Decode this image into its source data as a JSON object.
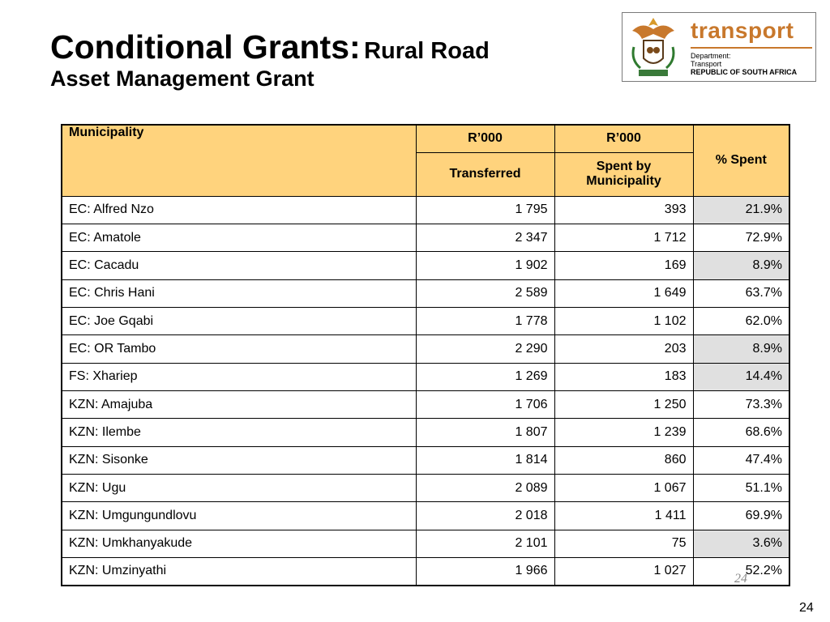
{
  "title": {
    "main": "Conditional Grants:",
    "sub_line1": "Rural Road",
    "sub_line2": "Asset Management Grant"
  },
  "logo": {
    "brand": "transport",
    "dept_line1": "Department:",
    "dept_line2": "Transport",
    "dept_line3": "REPUBLIC OF SOUTH AFRICA"
  },
  "table": {
    "headers": {
      "municipality": "Municipality",
      "unit_transferred": "R’000",
      "unit_spent": "R’000",
      "transferred": "Transferred",
      "spent_by": "Spent by Municipality",
      "pct_spent": "% Spent"
    },
    "rows": [
      {
        "municipality": "EC: Alfred Nzo",
        "transferred": "1 795",
        "spent": "393",
        "pct": "21.9%",
        "low": true
      },
      {
        "municipality": "EC: Amatole",
        "transferred": "2 347",
        "spent": "1 712",
        "pct": "72.9%",
        "low": false
      },
      {
        "municipality": "EC: Cacadu",
        "transferred": "1 902",
        "spent": "169",
        "pct": "8.9%",
        "low": true
      },
      {
        "municipality": "EC: Chris Hani",
        "transferred": "2 589",
        "spent": "1 649",
        "pct": "63.7%",
        "low": false
      },
      {
        "municipality": "EC: Joe Gqabi",
        "transferred": "1 778",
        "spent": "1 102",
        "pct": "62.0%",
        "low": false
      },
      {
        "municipality": "EC: OR Tambo",
        "transferred": "2 290",
        "spent": "203",
        "pct": "8.9%",
        "low": true
      },
      {
        "municipality": "FS: Xhariep",
        "transferred": "1 269",
        "spent": "183",
        "pct": "14.4%",
        "low": true
      },
      {
        "municipality": "KZN: Amajuba",
        "transferred": "1 706",
        "spent": "1 250",
        "pct": "73.3%",
        "low": false
      },
      {
        "municipality": "KZN: Ilembe",
        "transferred": "1 807",
        "spent": "1 239",
        "pct": "68.6%",
        "low": false
      },
      {
        "municipality": "KZN: Sisonke",
        "transferred": "1 814",
        "spent": "860",
        "pct": "47.4%",
        "low": false
      },
      {
        "municipality": "KZN: Ugu",
        "transferred": "2 089",
        "spent": "1 067",
        "pct": "51.1%",
        "low": false
      },
      {
        "municipality": "KZN: Umgungundlovu",
        "transferred": "2 018",
        "spent": "1 411",
        "pct": "69.9%",
        "low": false
      },
      {
        "municipality": "KZN: Umkhanyakude",
        "transferred": "2 101",
        "spent": "75",
        "pct": "3.6%",
        "low": true
      },
      {
        "municipality": "KZN: Umzinyathi",
        "transferred": "1 966",
        "spent": "1 027",
        "pct": "52.2%",
        "low": false
      }
    ]
  },
  "colors": {
    "header_fill": "#ffd37d",
    "low_spend_fill": "#e0e0e0",
    "brand": "#c8782c"
  },
  "footer": {
    "ghost_page_number": "24",
    "page_number": "24"
  }
}
